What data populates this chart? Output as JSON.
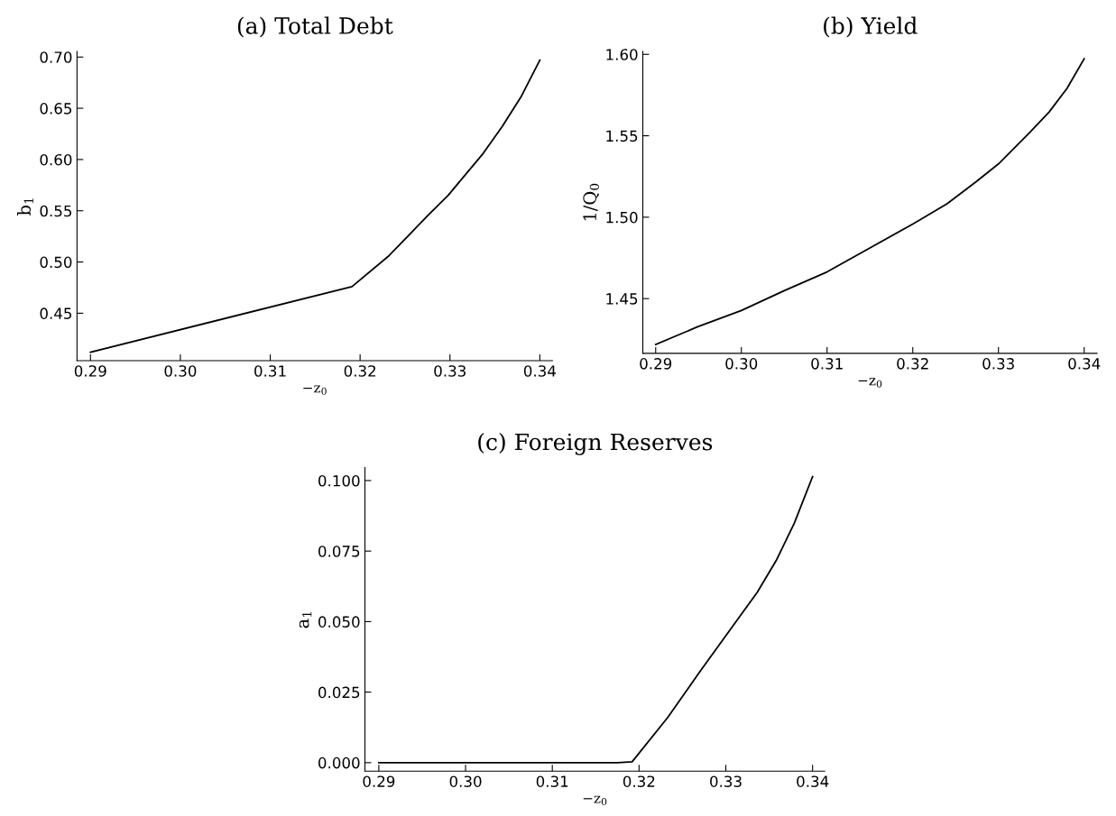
{
  "chart_data": [
    {
      "type": "line",
      "title": "(a) Total Debt",
      "xlabel": "−z$_{0}$",
      "ylabel": "b$_{1}$",
      "x": [
        0.29,
        0.3191,
        0.3232,
        0.3254,
        0.3275,
        0.3298,
        0.3316,
        0.3337,
        0.3358,
        0.3379,
        0.34
      ],
      "series": [
        {
          "color": "#000000",
          "values": [
            0.412,
            0.476,
            0.506,
            0.526,
            0.545,
            0.565,
            0.584,
            0.606,
            0.632,
            0.661,
            0.697
          ]
        }
      ],
      "xlim": [
        0.2885,
        0.3414
      ],
      "ylim": [
        0.4037,
        0.7055
      ],
      "xticks": [
        {
          "value": 0.29,
          "label": "0.29"
        },
        {
          "value": 0.3,
          "label": "0.30"
        },
        {
          "value": 0.31,
          "label": "0.31"
        },
        {
          "value": 0.32,
          "label": "0.32"
        },
        {
          "value": 0.33,
          "label": "0.33"
        },
        {
          "value": 0.34,
          "label": "0.34"
        }
      ],
      "yticks": [
        {
          "value": 0.45,
          "label": "0.45"
        },
        {
          "value": 0.5,
          "label": "0.50"
        },
        {
          "value": 0.55,
          "label": "0.55"
        },
        {
          "value": 0.6,
          "label": "0.60"
        },
        {
          "value": 0.65,
          "label": "0.65"
        },
        {
          "value": 0.7,
          "label": "0.70"
        }
      ],
      "grid": false,
      "legend": false
    },
    {
      "type": "line",
      "title": "(b) Yield",
      "xlabel": "−z$_{0}$",
      "ylabel": "1/Q$_{0}$",
      "x": [
        0.29,
        0.2949,
        0.3,
        0.305,
        0.31,
        0.315,
        0.32,
        0.324,
        0.3274,
        0.33,
        0.3336,
        0.3359,
        0.338,
        0.34
      ],
      "series": [
        {
          "color": "#000000",
          "values": [
            1.4218,
            1.4327,
            1.4427,
            1.4549,
            1.4664,
            1.4811,
            1.4958,
            1.5082,
            1.5218,
            1.5327,
            1.5518,
            1.5645,
            1.5791,
            1.5973
          ]
        }
      ],
      "xlim": [
        0.2885,
        0.3415
      ],
      "ylim": [
        1.4164,
        1.6018
      ],
      "xticks": [
        {
          "value": 0.29,
          "label": "0.29"
        },
        {
          "value": 0.3,
          "label": "0.30"
        },
        {
          "value": 0.31,
          "label": "0.31"
        },
        {
          "value": 0.32,
          "label": "0.32"
        },
        {
          "value": 0.33,
          "label": "0.33"
        },
        {
          "value": 0.34,
          "label": "0.34"
        }
      ],
      "yticks": [
        {
          "value": 1.45,
          "label": "1.45"
        },
        {
          "value": 1.5,
          "label": "1.50"
        },
        {
          "value": 1.55,
          "label": "1.55"
        },
        {
          "value": 1.6,
          "label": "1.60"
        }
      ],
      "grid": false,
      "legend": false
    },
    {
      "type": "line",
      "title": "(c) Foreign Reserves",
      "xlabel": "−z$_{0}$",
      "ylabel": "a$_{1}$",
      "x": [
        0.29,
        0.3175,
        0.3192,
        0.3233,
        0.327,
        0.3313,
        0.3336,
        0.3358,
        0.3379,
        0.34
      ],
      "series": [
        {
          "color": "#000000",
          "values": [
            0.0,
            0.0,
            0.0003,
            0.016,
            0.0322,
            0.0505,
            0.0603,
            0.0716,
            0.0849,
            0.1014
          ]
        }
      ],
      "xlim": [
        0.2884,
        0.3414
      ],
      "ylim": [
        -0.003,
        0.1046
      ],
      "xticks": [
        {
          "value": 0.29,
          "label": "0.29"
        },
        {
          "value": 0.3,
          "label": "0.30"
        },
        {
          "value": 0.31,
          "label": "0.31"
        },
        {
          "value": 0.32,
          "label": "0.32"
        },
        {
          "value": 0.33,
          "label": "0.33"
        },
        {
          "value": 0.34,
          "label": "0.34"
        }
      ],
      "yticks": [
        {
          "value": 0.0,
          "label": "0.000"
        },
        {
          "value": 0.025,
          "label": "0.025"
        },
        {
          "value": 0.05,
          "label": "0.050"
        },
        {
          "value": 0.075,
          "label": "0.075"
        },
        {
          "value": 0.1,
          "label": "0.100"
        }
      ],
      "grid": false,
      "legend": false
    }
  ]
}
